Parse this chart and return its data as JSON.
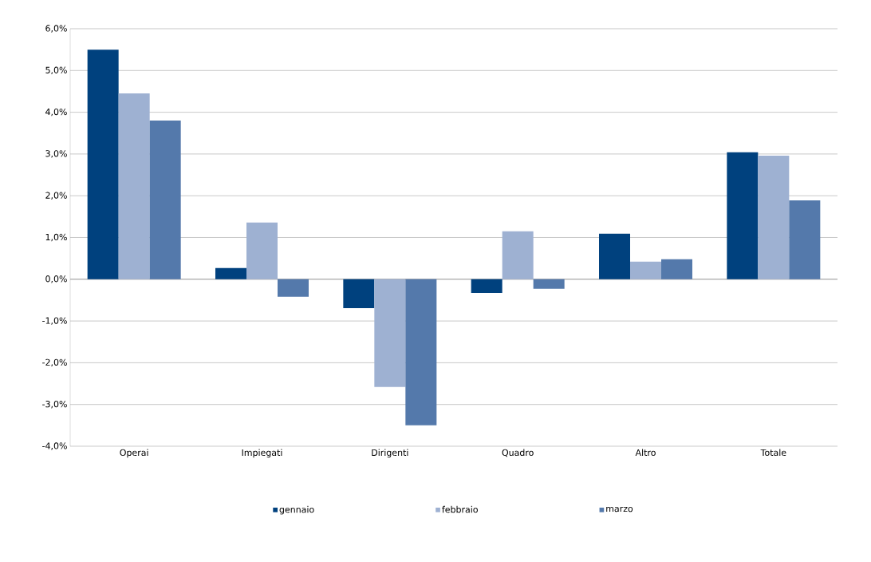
{
  "chart_data": {
    "type": "bar",
    "categories": [
      "Operai",
      "Impiegati",
      "Dirigenti",
      "Quadro",
      "Altro",
      "Totale"
    ],
    "series": [
      {
        "name": "gennaio",
        "color": "#00417e",
        "values": [
          5.5,
          0.27,
          -0.69,
          -0.33,
          1.09,
          3.04
        ]
      },
      {
        "name": "febbraio",
        "color": "#9eb1d2",
        "values": [
          4.45,
          1.36,
          -2.58,
          1.15,
          0.42,
          2.96
        ]
      },
      {
        "name": "marzo",
        "color": "#5479ab",
        "values": [
          3.8,
          -0.42,
          -3.5,
          -0.23,
          0.48,
          1.89
        ]
      }
    ],
    "ylim": [
      -4,
      6
    ],
    "yticks": [
      {
        "value": -4,
        "label": "-4,0%"
      },
      {
        "value": -3,
        "label": "-3,0%"
      },
      {
        "value": -2,
        "label": "-2,0%"
      },
      {
        "value": -1,
        "label": "-1,0%"
      },
      {
        "value": 0,
        "label": "0,0%"
      },
      {
        "value": 1,
        "label": "1,0%"
      },
      {
        "value": 2,
        "label": "2,0%"
      },
      {
        "value": 3,
        "label": "3,0%"
      },
      {
        "value": 4,
        "label": "4,0%"
      },
      {
        "value": 5,
        "label": "5,0%"
      },
      {
        "value": 6,
        "label": "6,0%"
      }
    ],
    "grid": "y",
    "legend": "bottom"
  }
}
